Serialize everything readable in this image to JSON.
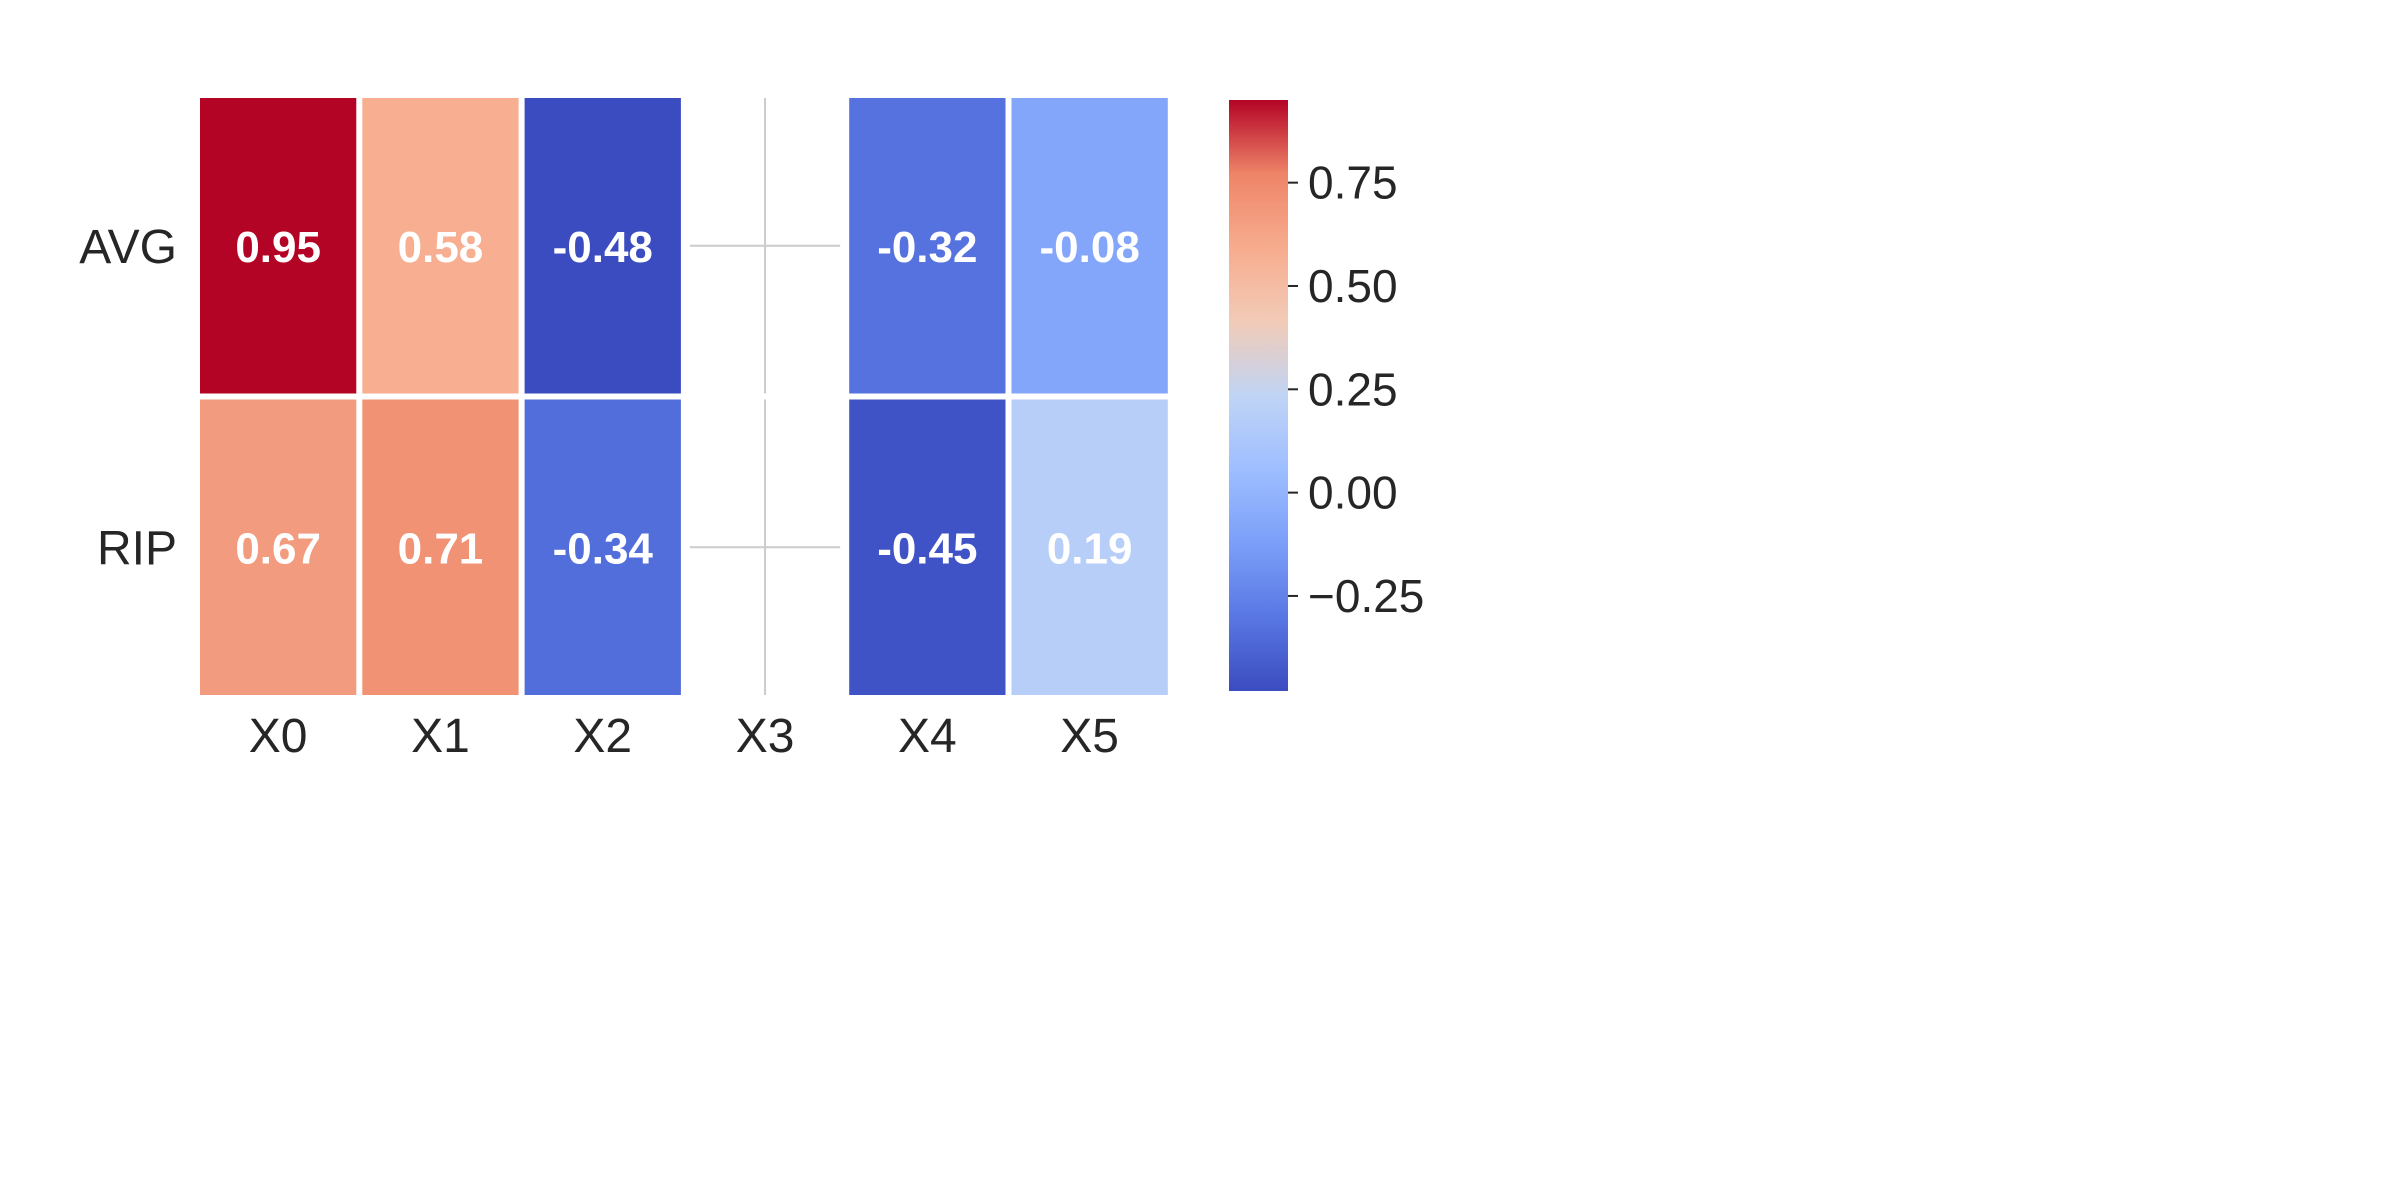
{
  "chart_data": {
    "type": "heatmap",
    "title": "",
    "xlabel": "",
    "ylabel": "",
    "columns": [
      "X0",
      "X1",
      "X2",
      "X3",
      "X4",
      "X5"
    ],
    "rows": [
      "AVG",
      "RIP"
    ],
    "values": [
      [
        0.95,
        0.58,
        -0.48,
        null,
        -0.32,
        -0.08
      ],
      [
        0.67,
        0.71,
        -0.34,
        null,
        -0.45,
        0.19
      ]
    ],
    "labels": [
      [
        "0.95",
        "0.58",
        "-0.48",
        "",
        "-0.32",
        "-0.08"
      ],
      [
        "0.67",
        "0.71",
        "-0.34",
        "",
        "-0.45",
        "0.19"
      ]
    ],
    "colormap": "coolwarm",
    "vmin": -0.48,
    "vmax": 0.95,
    "colorbar": {
      "ticks": [
        0.75,
        0.5,
        0.25,
        0.0,
        -0.25
      ],
      "tick_labels": [
        "0.75",
        "0.50",
        "0.25",
        "0.00",
        "−0.25"
      ]
    },
    "missing_column_color": "#cccccc"
  }
}
